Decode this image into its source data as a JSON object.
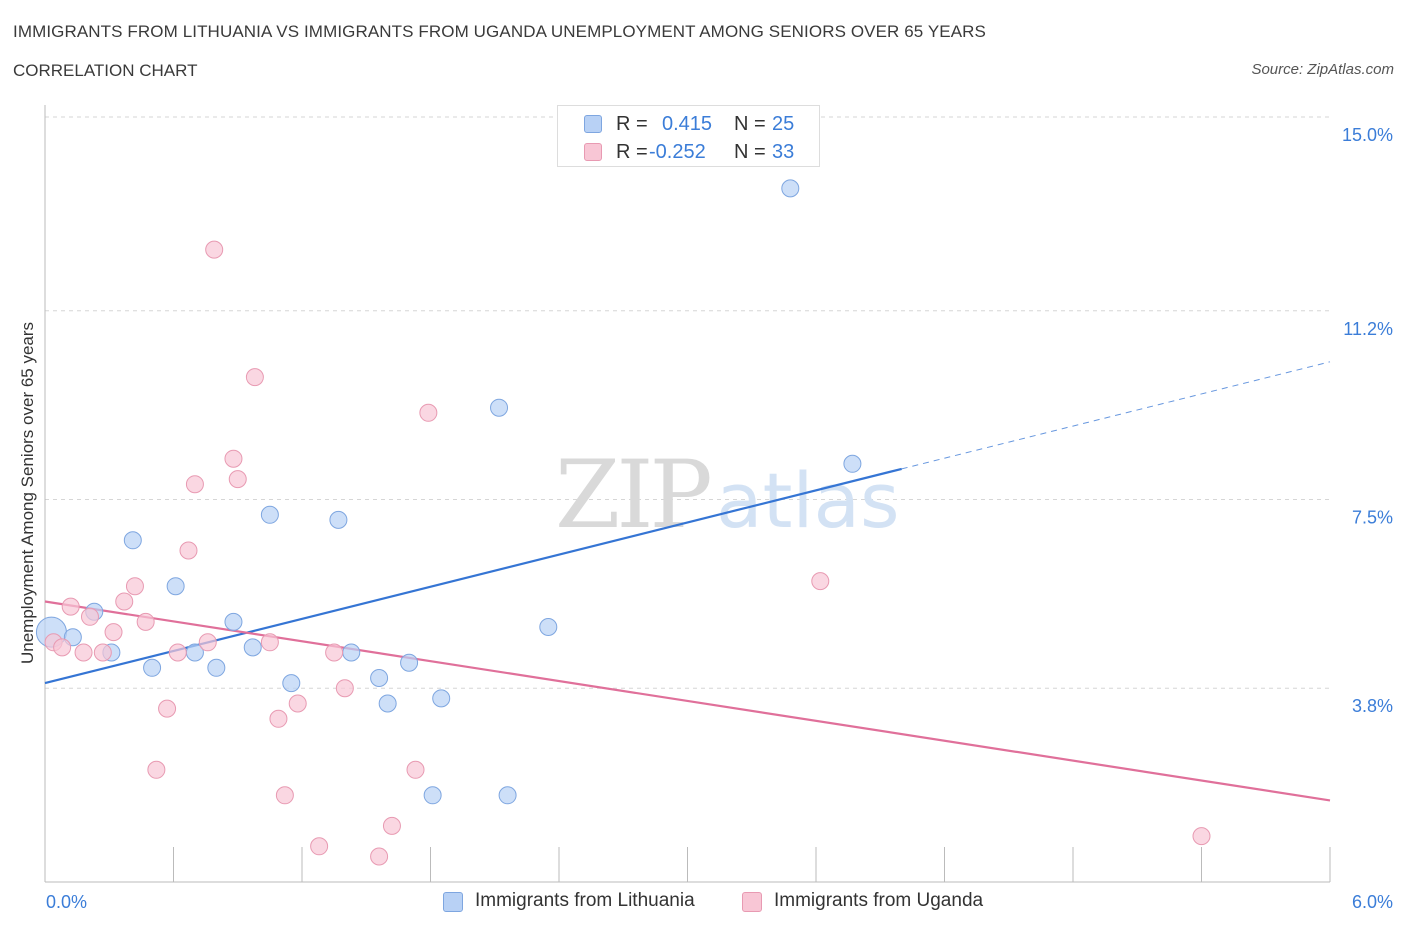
{
  "header": {
    "title": "IMMIGRANTS FROM LITHUANIA VS IMMIGRANTS FROM UGANDA UNEMPLOYMENT AMONG SENIORS OVER 65 YEARS",
    "subtitle": "CORRELATION CHART",
    "source": "Source: ZipAtlas.com"
  },
  "watermark": {
    "zip": "ZIP",
    "atlas": "atlas"
  },
  "legend": {
    "series1": {
      "r_label": "R =",
      "r_value": "0.415",
      "n_label": "N =",
      "n_value": "25"
    },
    "series2": {
      "r_label": "R =",
      "r_value": "-0.252",
      "n_label": "N =",
      "n_value": "33"
    }
  },
  "colors": {
    "lithuania_fill": "#b8d1f5",
    "lithuania_stroke": "#7ea6e0",
    "lithuania_line": "#3575d4",
    "uganda_fill": "#f8c6d5",
    "uganda_stroke": "#e89ab2",
    "uganda_line": "#e0709a",
    "tick_label": "#3b7dd8",
    "grid": "#d6d6d6"
  },
  "chart_data": {
    "type": "scatter",
    "xlabel": "",
    "ylabel": "Unemployment Among Seniors over 65 years",
    "xlim": [
      0,
      6.0
    ],
    "ylim": [
      0,
      15.0
    ],
    "x_tick_labels": [
      {
        "value": 0,
        "label": "0.0%"
      },
      {
        "value": 6.0,
        "label": "6.0%"
      }
    ],
    "y_tick_labels": [
      {
        "value": 3.8,
        "label": "3.8%"
      },
      {
        "value": 7.5,
        "label": "7.5%"
      },
      {
        "value": 11.2,
        "label": "11.2%"
      },
      {
        "value": 15.0,
        "label": "15.0%"
      }
    ],
    "grid": true,
    "legend_position": "top-center",
    "series": [
      {
        "name": "Immigrants from Lithuania",
        "color": "#b8d1f5",
        "points": [
          [
            0.03,
            4.9
          ],
          [
            0.13,
            4.8
          ],
          [
            0.23,
            5.3
          ],
          [
            0.31,
            4.5
          ],
          [
            0.41,
            6.7
          ],
          [
            0.5,
            4.2
          ],
          [
            0.61,
            5.8
          ],
          [
            0.7,
            4.5
          ],
          [
            0.8,
            4.2
          ],
          [
            0.88,
            5.1
          ],
          [
            0.97,
            4.6
          ],
          [
            1.05,
            7.2
          ],
          [
            1.15,
            3.9
          ],
          [
            1.37,
            7.1
          ],
          [
            1.43,
            4.5
          ],
          [
            1.56,
            4.0
          ],
          [
            1.6,
            3.5
          ],
          [
            1.7,
            4.3
          ],
          [
            1.81,
            1.7
          ],
          [
            1.85,
            3.6
          ],
          [
            2.12,
            9.3
          ],
          [
            2.16,
            1.7
          ],
          [
            2.35,
            5.0
          ],
          [
            3.48,
            13.6
          ],
          [
            3.77,
            8.2
          ]
        ],
        "trend": {
          "x": [
            0,
            4.0
          ],
          "y": [
            3.9,
            8.1
          ],
          "dashed_extension": {
            "x": [
              4.0,
              6.0
            ],
            "y": [
              8.1,
              10.2
            ]
          }
        }
      },
      {
        "name": "Immigrants from Uganda",
        "color": "#f8c6d5",
        "points": [
          [
            0.04,
            4.7
          ],
          [
            0.08,
            4.6
          ],
          [
            0.12,
            5.4
          ],
          [
            0.18,
            4.5
          ],
          [
            0.21,
            5.2
          ],
          [
            0.27,
            4.5
          ],
          [
            0.32,
            4.9
          ],
          [
            0.37,
            5.5
          ],
          [
            0.42,
            5.8
          ],
          [
            0.47,
            5.1
          ],
          [
            0.52,
            2.2
          ],
          [
            0.57,
            3.4
          ],
          [
            0.62,
            4.5
          ],
          [
            0.67,
            6.5
          ],
          [
            0.7,
            7.8
          ],
          [
            0.76,
            4.7
          ],
          [
            0.79,
            12.4
          ],
          [
            0.88,
            8.3
          ],
          [
            0.9,
            7.9
          ],
          [
            0.98,
            9.9
          ],
          [
            1.05,
            4.7
          ],
          [
            1.09,
            3.2
          ],
          [
            1.12,
            1.7
          ],
          [
            1.18,
            3.5
          ],
          [
            1.28,
            0.7
          ],
          [
            1.35,
            4.5
          ],
          [
            1.4,
            3.8
          ],
          [
            1.56,
            0.5
          ],
          [
            1.62,
            1.1
          ],
          [
            1.73,
            2.2
          ],
          [
            1.79,
            9.2
          ],
          [
            3.62,
            5.9
          ],
          [
            5.4,
            0.9
          ]
        ],
        "trend": {
          "x": [
            0,
            6.0
          ],
          "y": [
            5.5,
            1.6
          ]
        }
      }
    ]
  }
}
